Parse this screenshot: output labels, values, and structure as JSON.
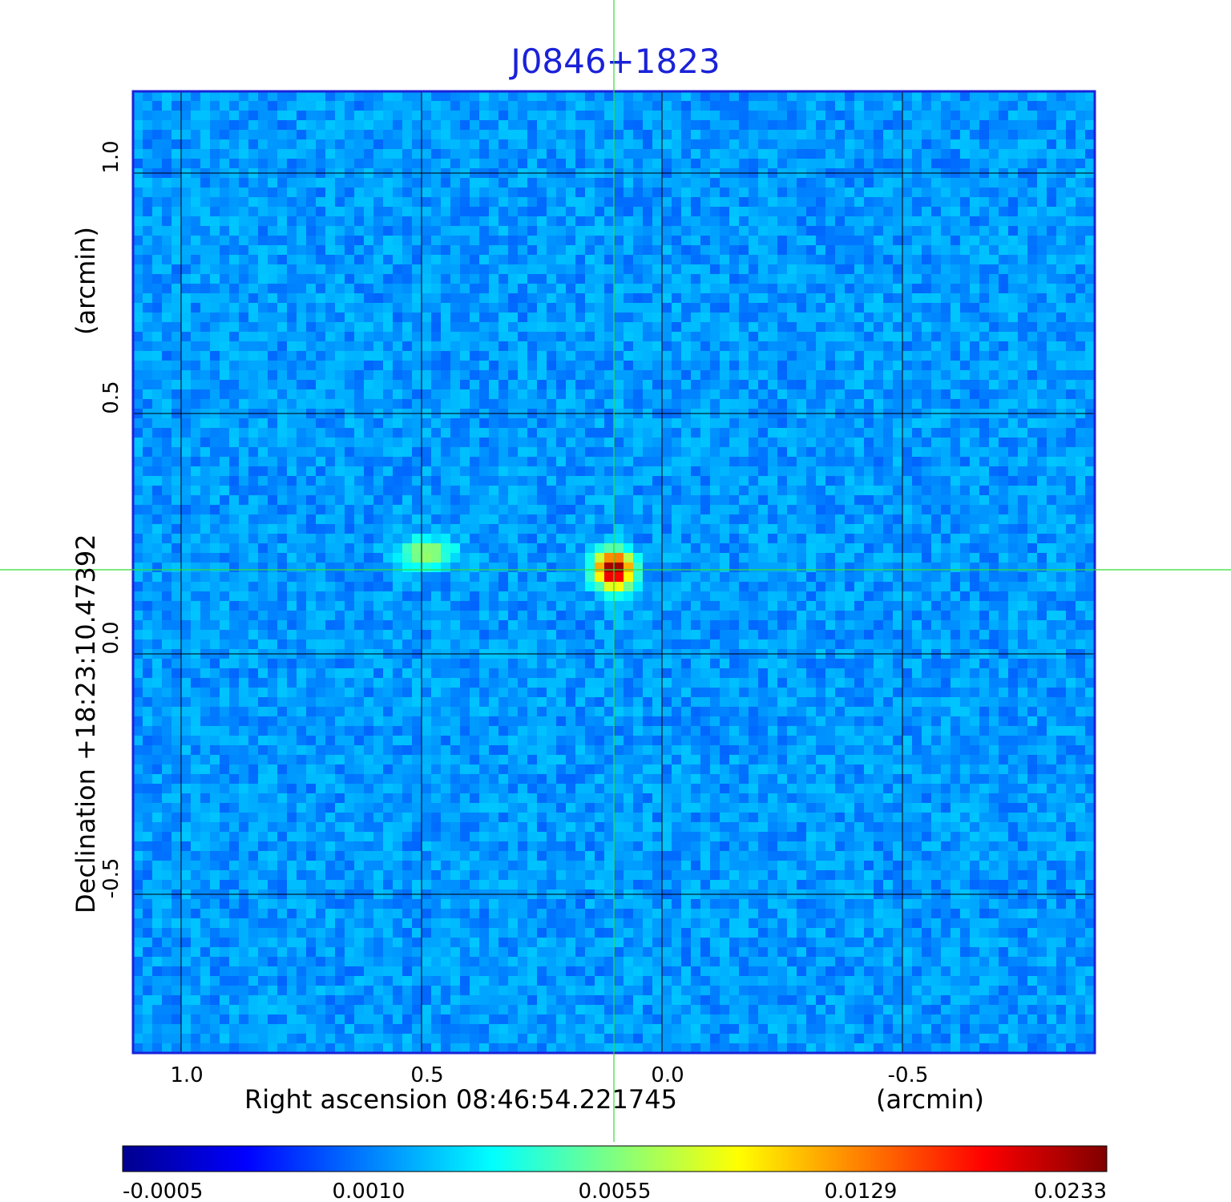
{
  "chart_data": {
    "type": "heatmap",
    "title": "J0846+1823",
    "xlabel": "Right ascension  08:46:54.221745",
    "xunit": "(arcmin)",
    "ylabel": "Declination  +18:23:10.47392",
    "yunit": "(arcmin)",
    "xlim": [
      1.1,
      -0.9
    ],
    "ylim": [
      -0.83,
      1.17
    ],
    "x_ticks": [
      {
        "value": 1.0,
        "label": "1.0"
      },
      {
        "value": 0.5,
        "label": "0.5"
      },
      {
        "value": 0.0,
        "label": "0.0"
      },
      {
        "value": -0.5,
        "label": "-0.5"
      }
    ],
    "y_ticks": [
      {
        "value": 1.0,
        "label": "1.0"
      },
      {
        "value": 0.5,
        "label": "0.5"
      },
      {
        "value": 0.0,
        "label": "0.0"
      },
      {
        "value": -0.5,
        "label": "-0.5"
      }
    ],
    "grid": true,
    "crosshair": {
      "x": 0.1,
      "y": 0.175
    },
    "sources": [
      {
        "x": 0.1,
        "y": 0.175,
        "peak": 0.0233
      },
      {
        "x": 0.49,
        "y": 0.21,
        "peak": 0.0048
      }
    ],
    "background_level": 0.0005,
    "colorbar": {
      "colormap": "jet",
      "ticks": [
        {
          "value": -0.0005,
          "label": "-0.0005"
        },
        {
          "value": 0.001,
          "label": "0.0010"
        },
        {
          "value": 0.0055,
          "label": "0.0055"
        },
        {
          "value": 0.0129,
          "label": "0.0129"
        },
        {
          "value": 0.0233,
          "label": "0.0233"
        }
      ]
    }
  },
  "colors": {
    "title": "#1a22d8",
    "crosshair": "#33dd33",
    "frame": "#1a22d8",
    "grid": "#000000"
  }
}
